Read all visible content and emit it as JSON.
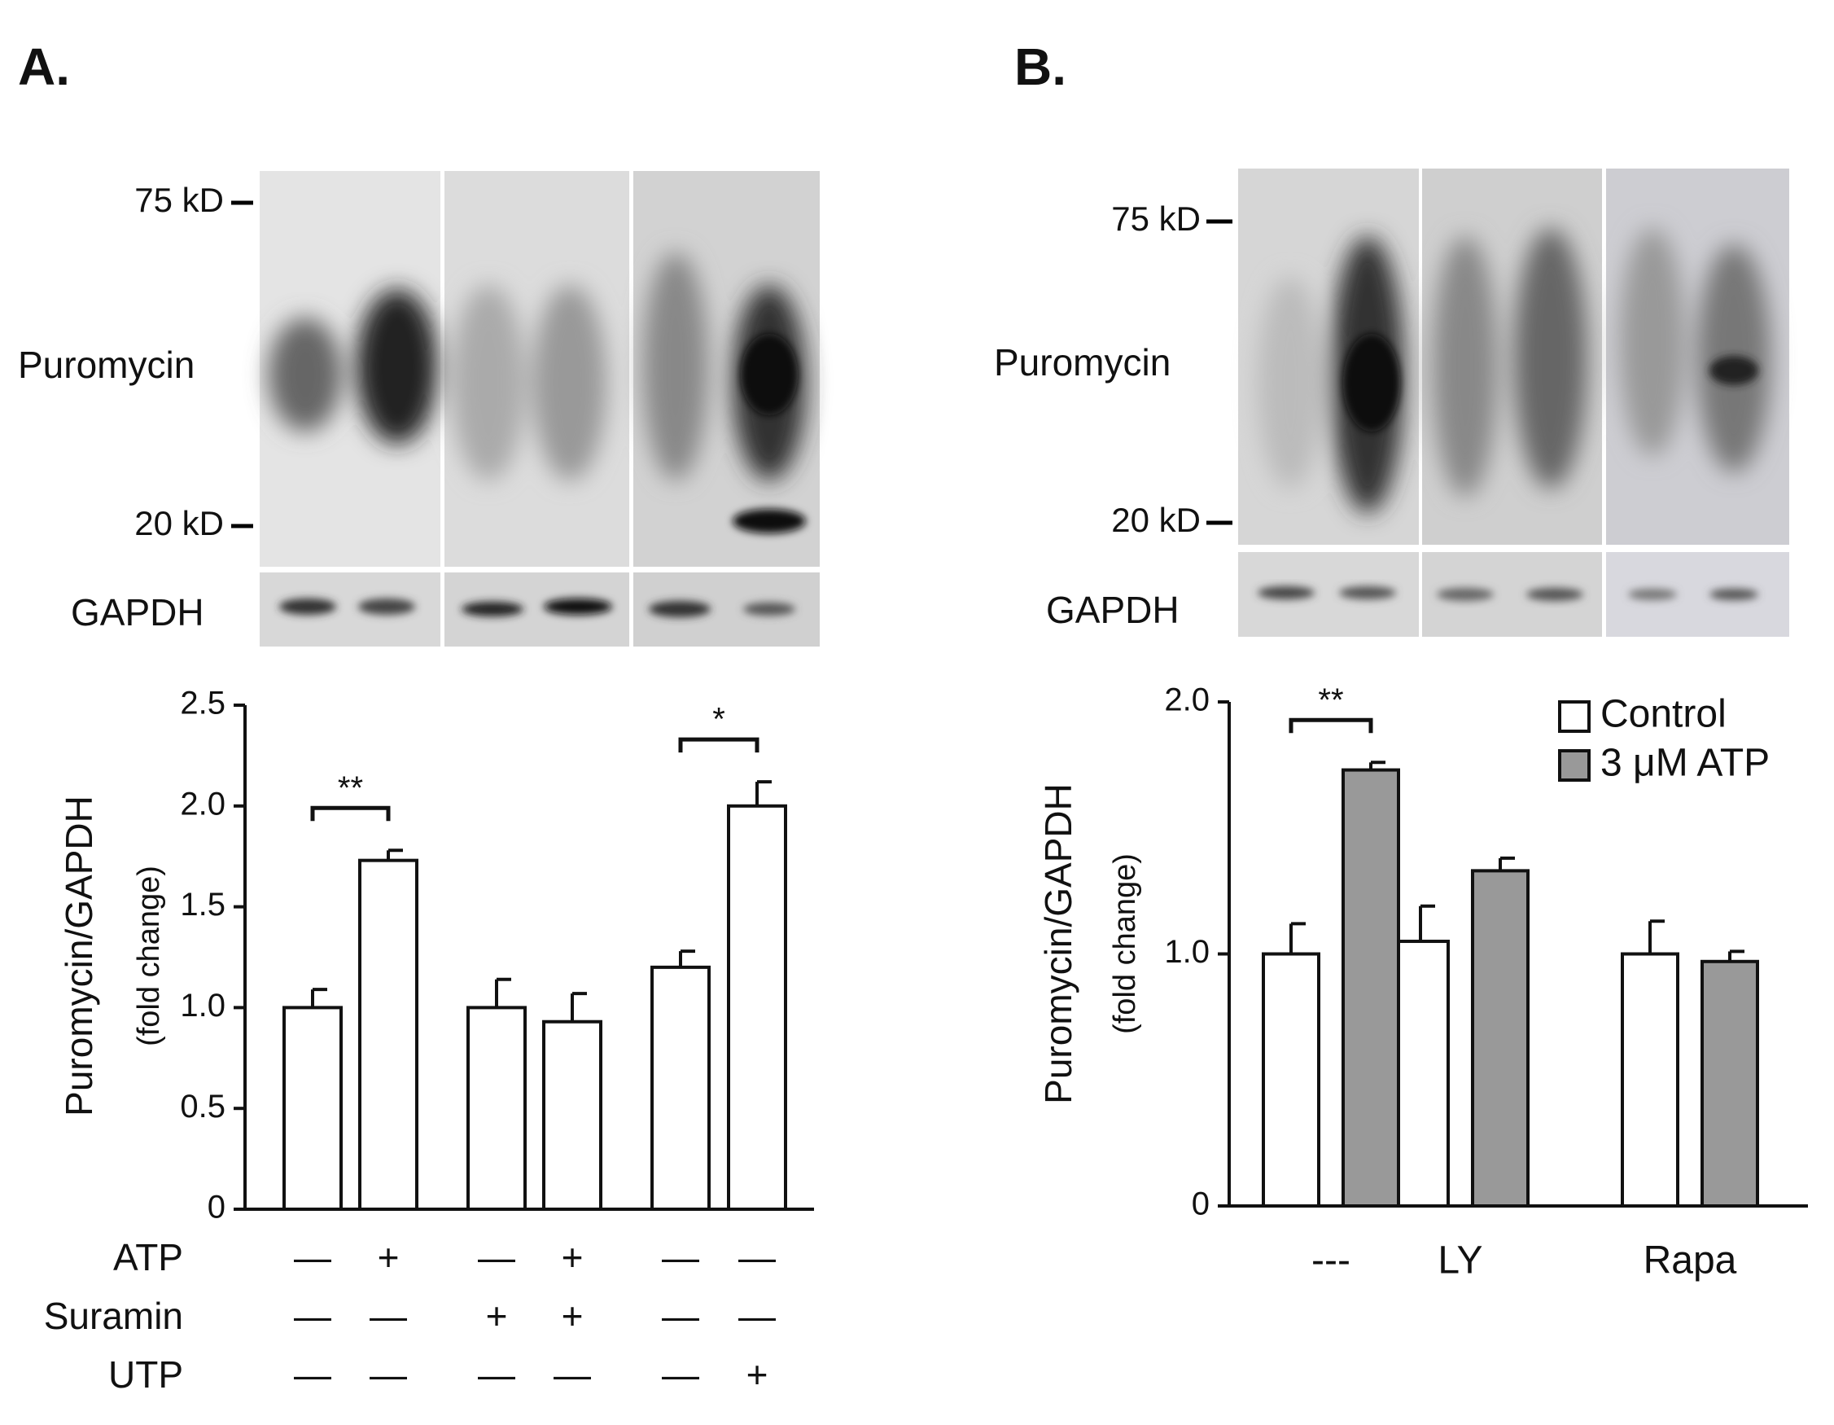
{
  "chart_data": [
    {
      "type": "bar",
      "panel_label": "A.",
      "blot_marker_labels": [
        "75 kD",
        "20 kD"
      ],
      "blot_row_labels": [
        "Puromycin",
        "GAPDH"
      ],
      "ylabel": "Puromycin/GAPDH",
      "ylabel_sub": "(fold change)",
      "categories": [
        null,
        null,
        null,
        null,
        null,
        null
      ],
      "values": [
        1.0,
        1.73,
        1.0,
        0.93,
        1.2,
        2.0
      ],
      "errors": [
        0.09,
        0.05,
        0.14,
        0.14,
        0.08,
        0.12
      ],
      "annotations": [
        null,
        "**",
        null,
        null,
        null,
        "*"
      ],
      "color": "#ffffff",
      "ylim": [
        0,
        2.5
      ],
      "yticks": [
        0,
        0.5,
        {
          "value": 1,
          "label": "1.0"
        },
        1.5,
        {
          "value": 2,
          "label": "2.0"
        },
        2.5
      ],
      "treatment_rows": [
        {
          "name": "ATP",
          "signs": [
            "—",
            "+",
            "—",
            "+",
            "—",
            "—"
          ]
        },
        {
          "name": "Suramin",
          "signs": [
            "—",
            "—",
            "+",
            "+",
            "—",
            "—"
          ]
        },
        {
          "name": "UTP",
          "signs": [
            "—",
            "—",
            "—",
            "—",
            "—",
            "+"
          ]
        }
      ]
    },
    {
      "type": "bar",
      "panel_label": "B.",
      "blot_marker_labels": [
        "75 kD",
        "20 kD"
      ],
      "blot_row_labels": [
        "Puromycin",
        "GAPDH"
      ],
      "ylabel": "Puromycin/GAPDH",
      "ylabel_sub": "(fold change)",
      "categories": [
        "---",
        "LY",
        "Rapa"
      ],
      "series": [
        {
          "name": "Control",
          "color": "#ffffff",
          "values": [
            1.0,
            1.05,
            1.0
          ],
          "errors": [
            0.12,
            0.14,
            0.13
          ]
        },
        {
          "name": "3 μM ATP",
          "color": "#999999",
          "values": [
            1.73,
            1.33,
            0.97
          ],
          "errors": [
            0.03,
            0.05,
            0.04
          ]
        }
      ],
      "annotations": [
        "**",
        null,
        null
      ],
      "legend": "upper right",
      "ylim": [
        0,
        2
      ],
      "yticks": [
        0,
        {
          "value": 1,
          "label": "1.0"
        },
        {
          "value": 2,
          "label": "2.0"
        }
      ]
    }
  ]
}
